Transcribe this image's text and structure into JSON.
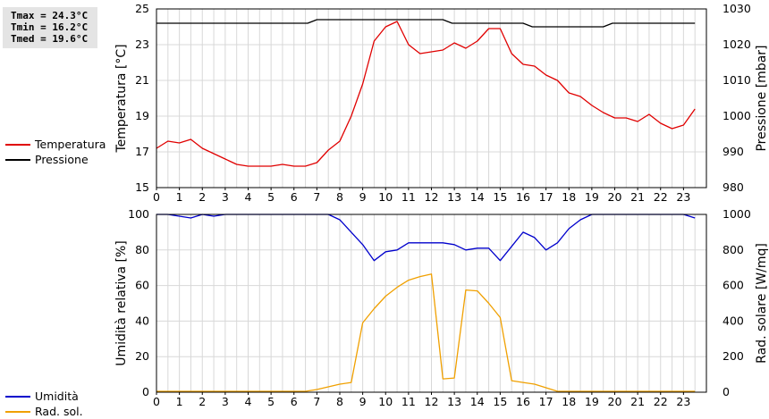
{
  "stats": {
    "tmax": "Tmax = 24.3°C",
    "tmin": "Tmin = 16.2°C",
    "tmed": "Tmed = 19.6°C"
  },
  "colors": {
    "temperature": "#e00000",
    "pressure": "#000000",
    "humidity": "#0000cc",
    "radiation": "#f0a000",
    "grid": "#d8d8d8"
  },
  "chart_data": [
    {
      "type": "line",
      "xlim": [
        0,
        24
      ],
      "x_ticks": [
        "0",
        "1",
        "2",
        "3",
        "4",
        "5",
        "6",
        "7",
        "8",
        "9",
        "10",
        "11",
        "12",
        "13",
        "14",
        "15",
        "16",
        "17",
        "18",
        "19",
        "20",
        "21",
        "22",
        "23"
      ],
      "ylabel": "Temperatura [°C]",
      "ylim": [
        15,
        25
      ],
      "y_ticks": [
        "15",
        "17",
        "19",
        "21",
        "23",
        "25"
      ],
      "y2label": "Pressione [mbar]",
      "y2lim": [
        980,
        1030
      ],
      "y2_ticks": [
        "980",
        "990",
        "1000",
        "1010",
        "1020",
        "1030"
      ],
      "grid": true,
      "legend_position": "left",
      "series": [
        {
          "name": "Temperatura",
          "axis": "left",
          "x": [
            0,
            0.5,
            1,
            1.5,
            2,
            2.5,
            3,
            3.5,
            4,
            4.5,
            5,
            5.5,
            6,
            6.5,
            7,
            7.5,
            8,
            8.5,
            9,
            9.5,
            10,
            10.5,
            11,
            11.5,
            12,
            12.5,
            13,
            13.5,
            14,
            14.5,
            15,
            15.5,
            16,
            16.5,
            17,
            17.5,
            18,
            18.5,
            19,
            19.5,
            20,
            20.5,
            21,
            21.5,
            22,
            22.5,
            23,
            23.5
          ],
          "values": [
            17.2,
            17.6,
            17.5,
            17.7,
            17.2,
            16.9,
            16.6,
            16.3,
            16.2,
            16.2,
            16.2,
            16.3,
            16.2,
            16.2,
            16.4,
            17.1,
            17.6,
            19.0,
            20.8,
            23.2,
            24.0,
            24.3,
            23.0,
            22.5,
            22.6,
            22.7,
            23.1,
            22.8,
            23.2,
            23.9,
            23.9,
            22.5,
            21.9,
            21.8,
            21.3,
            21.0,
            20.3,
            20.1,
            19.6,
            19.2,
            18.9,
            18.9,
            18.7,
            19.1,
            18.6,
            18.3,
            18.5,
            19.4
          ]
        },
        {
          "name": "Pressione",
          "axis": "right",
          "x": [
            0,
            6.6,
            7,
            12.5,
            12.9,
            16,
            16.4,
            19.5,
            19.9,
            23.5
          ],
          "values": [
            1026,
            1026,
            1027,
            1027,
            1026,
            1026,
            1025,
            1025,
            1026,
            1026
          ]
        }
      ]
    },
    {
      "type": "line",
      "xlim": [
        0,
        24
      ],
      "x_ticks": [
        "0",
        "1",
        "2",
        "3",
        "4",
        "5",
        "6",
        "7",
        "8",
        "9",
        "10",
        "11",
        "12",
        "13",
        "14",
        "15",
        "16",
        "17",
        "18",
        "19",
        "20",
        "21",
        "22",
        "23"
      ],
      "ylabel": "Umidità relativa [%]",
      "ylim": [
        0,
        100
      ],
      "y_ticks": [
        "0",
        "20",
        "40",
        "60",
        "80",
        "100"
      ],
      "y2label": "Rad. solare [W/mq]",
      "y2lim": [
        0,
        1000
      ],
      "y2_ticks": [
        "0",
        "200",
        "400",
        "600",
        "800",
        "1000"
      ],
      "grid": true,
      "legend_position": "left",
      "series": [
        {
          "name": "Umidità",
          "axis": "left",
          "x": [
            0,
            0.5,
            1,
            1.5,
            2,
            2.5,
            3,
            3.5,
            4,
            4.5,
            5,
            5.5,
            6,
            6.5,
            7,
            7.5,
            8,
            8.5,
            9,
            9.5,
            10,
            10.5,
            11,
            11.5,
            12,
            12.5,
            13,
            13.5,
            14,
            14.5,
            15,
            15.5,
            16,
            16.5,
            17,
            17.5,
            18,
            18.5,
            19,
            19.5,
            20,
            20.5,
            21,
            21.5,
            22,
            22.5,
            23,
            23.5
          ],
          "values": [
            100,
            100,
            99,
            98,
            100,
            99,
            100,
            100,
            100,
            100,
            100,
            100,
            100,
            100,
            100,
            100,
            97,
            90,
            83,
            74,
            79,
            80,
            84,
            84,
            84,
            84,
            83,
            80,
            81,
            81,
            74,
            82,
            90,
            87,
            80,
            84,
            92,
            97,
            100,
            100,
            100,
            100,
            100,
            100,
            100,
            100,
            100,
            98
          ]
        },
        {
          "name": "Rad. sol.",
          "axis": "right",
          "x": [
            0,
            0.5,
            1,
            1.5,
            2,
            2.5,
            3,
            3.5,
            4,
            4.5,
            5,
            5.5,
            6,
            6.5,
            7,
            7.5,
            8,
            8.5,
            9,
            9.5,
            10,
            10.5,
            11,
            11.5,
            12,
            12.5,
            13,
            13.5,
            14,
            14.5,
            15,
            15.5,
            16,
            16.5,
            17,
            17.5,
            18,
            18.5,
            19,
            19.5,
            20,
            20.5,
            21,
            21.5,
            22,
            22.5,
            23,
            23.5
          ],
          "values": [
            5,
            5,
            5,
            5,
            5,
            5,
            5,
            5,
            5,
            5,
            5,
            5,
            5,
            5,
            15,
            30,
            45,
            55,
            390,
            470,
            540,
            590,
            630,
            650,
            665,
            75,
            80,
            575,
            570,
            500,
            420,
            65,
            55,
            45,
            25,
            5,
            5,
            5,
            5,
            5,
            5,
            5,
            5,
            5,
            5,
            5,
            5,
            5
          ]
        }
      ]
    }
  ]
}
